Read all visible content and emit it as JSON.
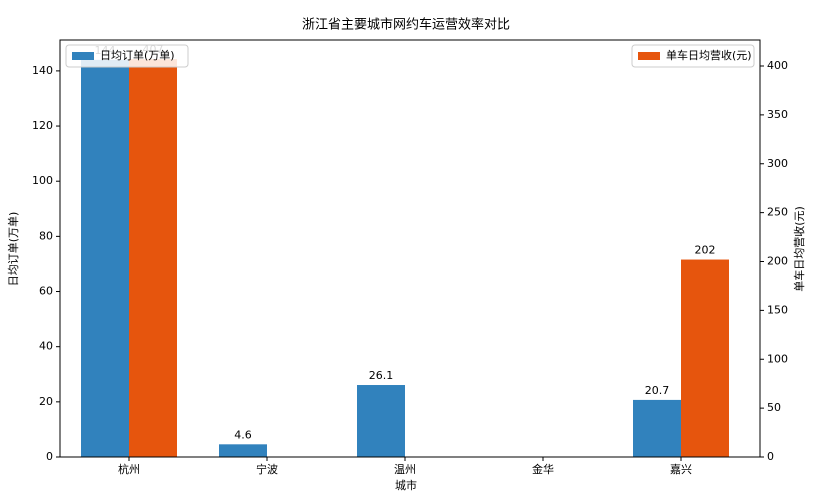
{
  "chart_data": {
    "type": "bar",
    "title": "浙江省主要城市网约车运营效率对比",
    "x_label": "城市",
    "y_label": "日均订单(万单)",
    "y2_label": "单车日均营收(元)",
    "categories": [
      "杭州",
      "宁波",
      "温州",
      "金华",
      "嘉兴"
    ],
    "series": [
      {
        "name": "日均订单(万单)",
        "color": "#3182bd",
        "values": [
          144,
          4.6,
          26.1,
          null,
          20.7
        ]
      },
      {
        "name": "单车日均营收(元)",
        "color": "#e6550d",
        "axis": "y2",
        "values": [
          407,
          null,
          null,
          null,
          202
        ]
      }
    ],
    "ylim": [
      0,
      151.2
    ],
    "yticks": [
      0,
      20,
      40,
      60,
      80,
      100,
      120,
      140
    ],
    "y2lim": [
      0,
      426.6
    ],
    "y2ticks": [
      0,
      50,
      100,
      150,
      200,
      250,
      300,
      350,
      400
    ],
    "legend": [
      "upper left",
      "upper right"
    ]
  }
}
